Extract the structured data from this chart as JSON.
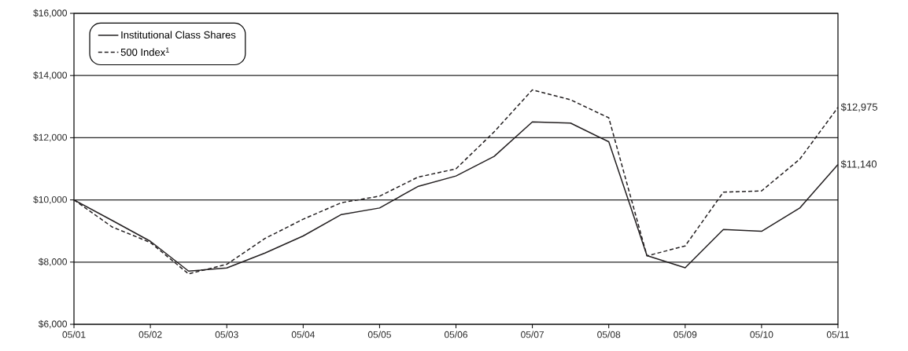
{
  "chart_data": {
    "type": "line",
    "x": [
      "2001-05",
      "2001-11",
      "2002-05",
      "2002-11",
      "2003-05",
      "2003-11",
      "2004-05",
      "2004-11",
      "2005-05",
      "2005-11",
      "2006-05",
      "2006-11",
      "2007-05",
      "2007-11",
      "2008-05",
      "2008-11",
      "2009-05",
      "2009-11",
      "2010-05",
      "2010-11",
      "2011-05"
    ],
    "series": [
      {
        "name": "Institutional Class Shares",
        "color": "#231f20",
        "line_style": "solid",
        "values": [
          10000,
          9340,
          8670,
          7710,
          7810,
          8290,
          8840,
          9530,
          9740,
          10430,
          10770,
          11400,
          12510,
          12470,
          11870,
          8210,
          7820,
          9050,
          8990,
          9740,
          11140
        ]
      },
      {
        "name": "500 Index$^{1}$",
        "color": "#231f20",
        "line_style": "dashed",
        "values": [
          10000,
          9130,
          8630,
          7620,
          7930,
          8760,
          9380,
          9910,
          10120,
          10730,
          11000,
          12190,
          13540,
          13220,
          12640,
          8200,
          8520,
          10250,
          10290,
          11310,
          12975
        ]
      }
    ],
    "xlim": [
      "2001-05",
      "2011-05"
    ],
    "xticks": [
      {
        "value": "2001-05",
        "label": "05/01"
      },
      {
        "value": "2002-05",
        "label": "05/02"
      },
      {
        "value": "2003-05",
        "label": "05/03"
      },
      {
        "value": "2004-05",
        "label": "05/04"
      },
      {
        "value": "2005-05",
        "label": "05/05"
      },
      {
        "value": "2006-05",
        "label": "05/06"
      },
      {
        "value": "2007-05",
        "label": "05/07"
      },
      {
        "value": "2008-05",
        "label": "05/08"
      },
      {
        "value": "2009-05",
        "label": "05/09"
      },
      {
        "value": "2010-05",
        "label": "05/10"
      },
      {
        "value": "2011-05",
        "label": "05/11"
      }
    ],
    "ylim": [
      6000,
      16000
    ],
    "yticks": [
      {
        "value": 6000,
        "label": "$6,000"
      },
      {
        "value": 8000,
        "label": "$8,000"
      },
      {
        "value": 10000,
        "label": "$10,000"
      },
      {
        "value": 12000,
        "label": "$12,000"
      },
      {
        "value": 14000,
        "label": "$14,000"
      },
      {
        "value": 16000,
        "label": "$16,000"
      }
    ],
    "grid": "y",
    "legend": "top left",
    "marker": "none",
    "annotations": [
      {
        "text": "$12,975",
        "x": "2011-05",
        "y": 12975
      },
      {
        "text": "$11,140",
        "x": "2011-05",
        "y": 11140
      }
    ]
  }
}
